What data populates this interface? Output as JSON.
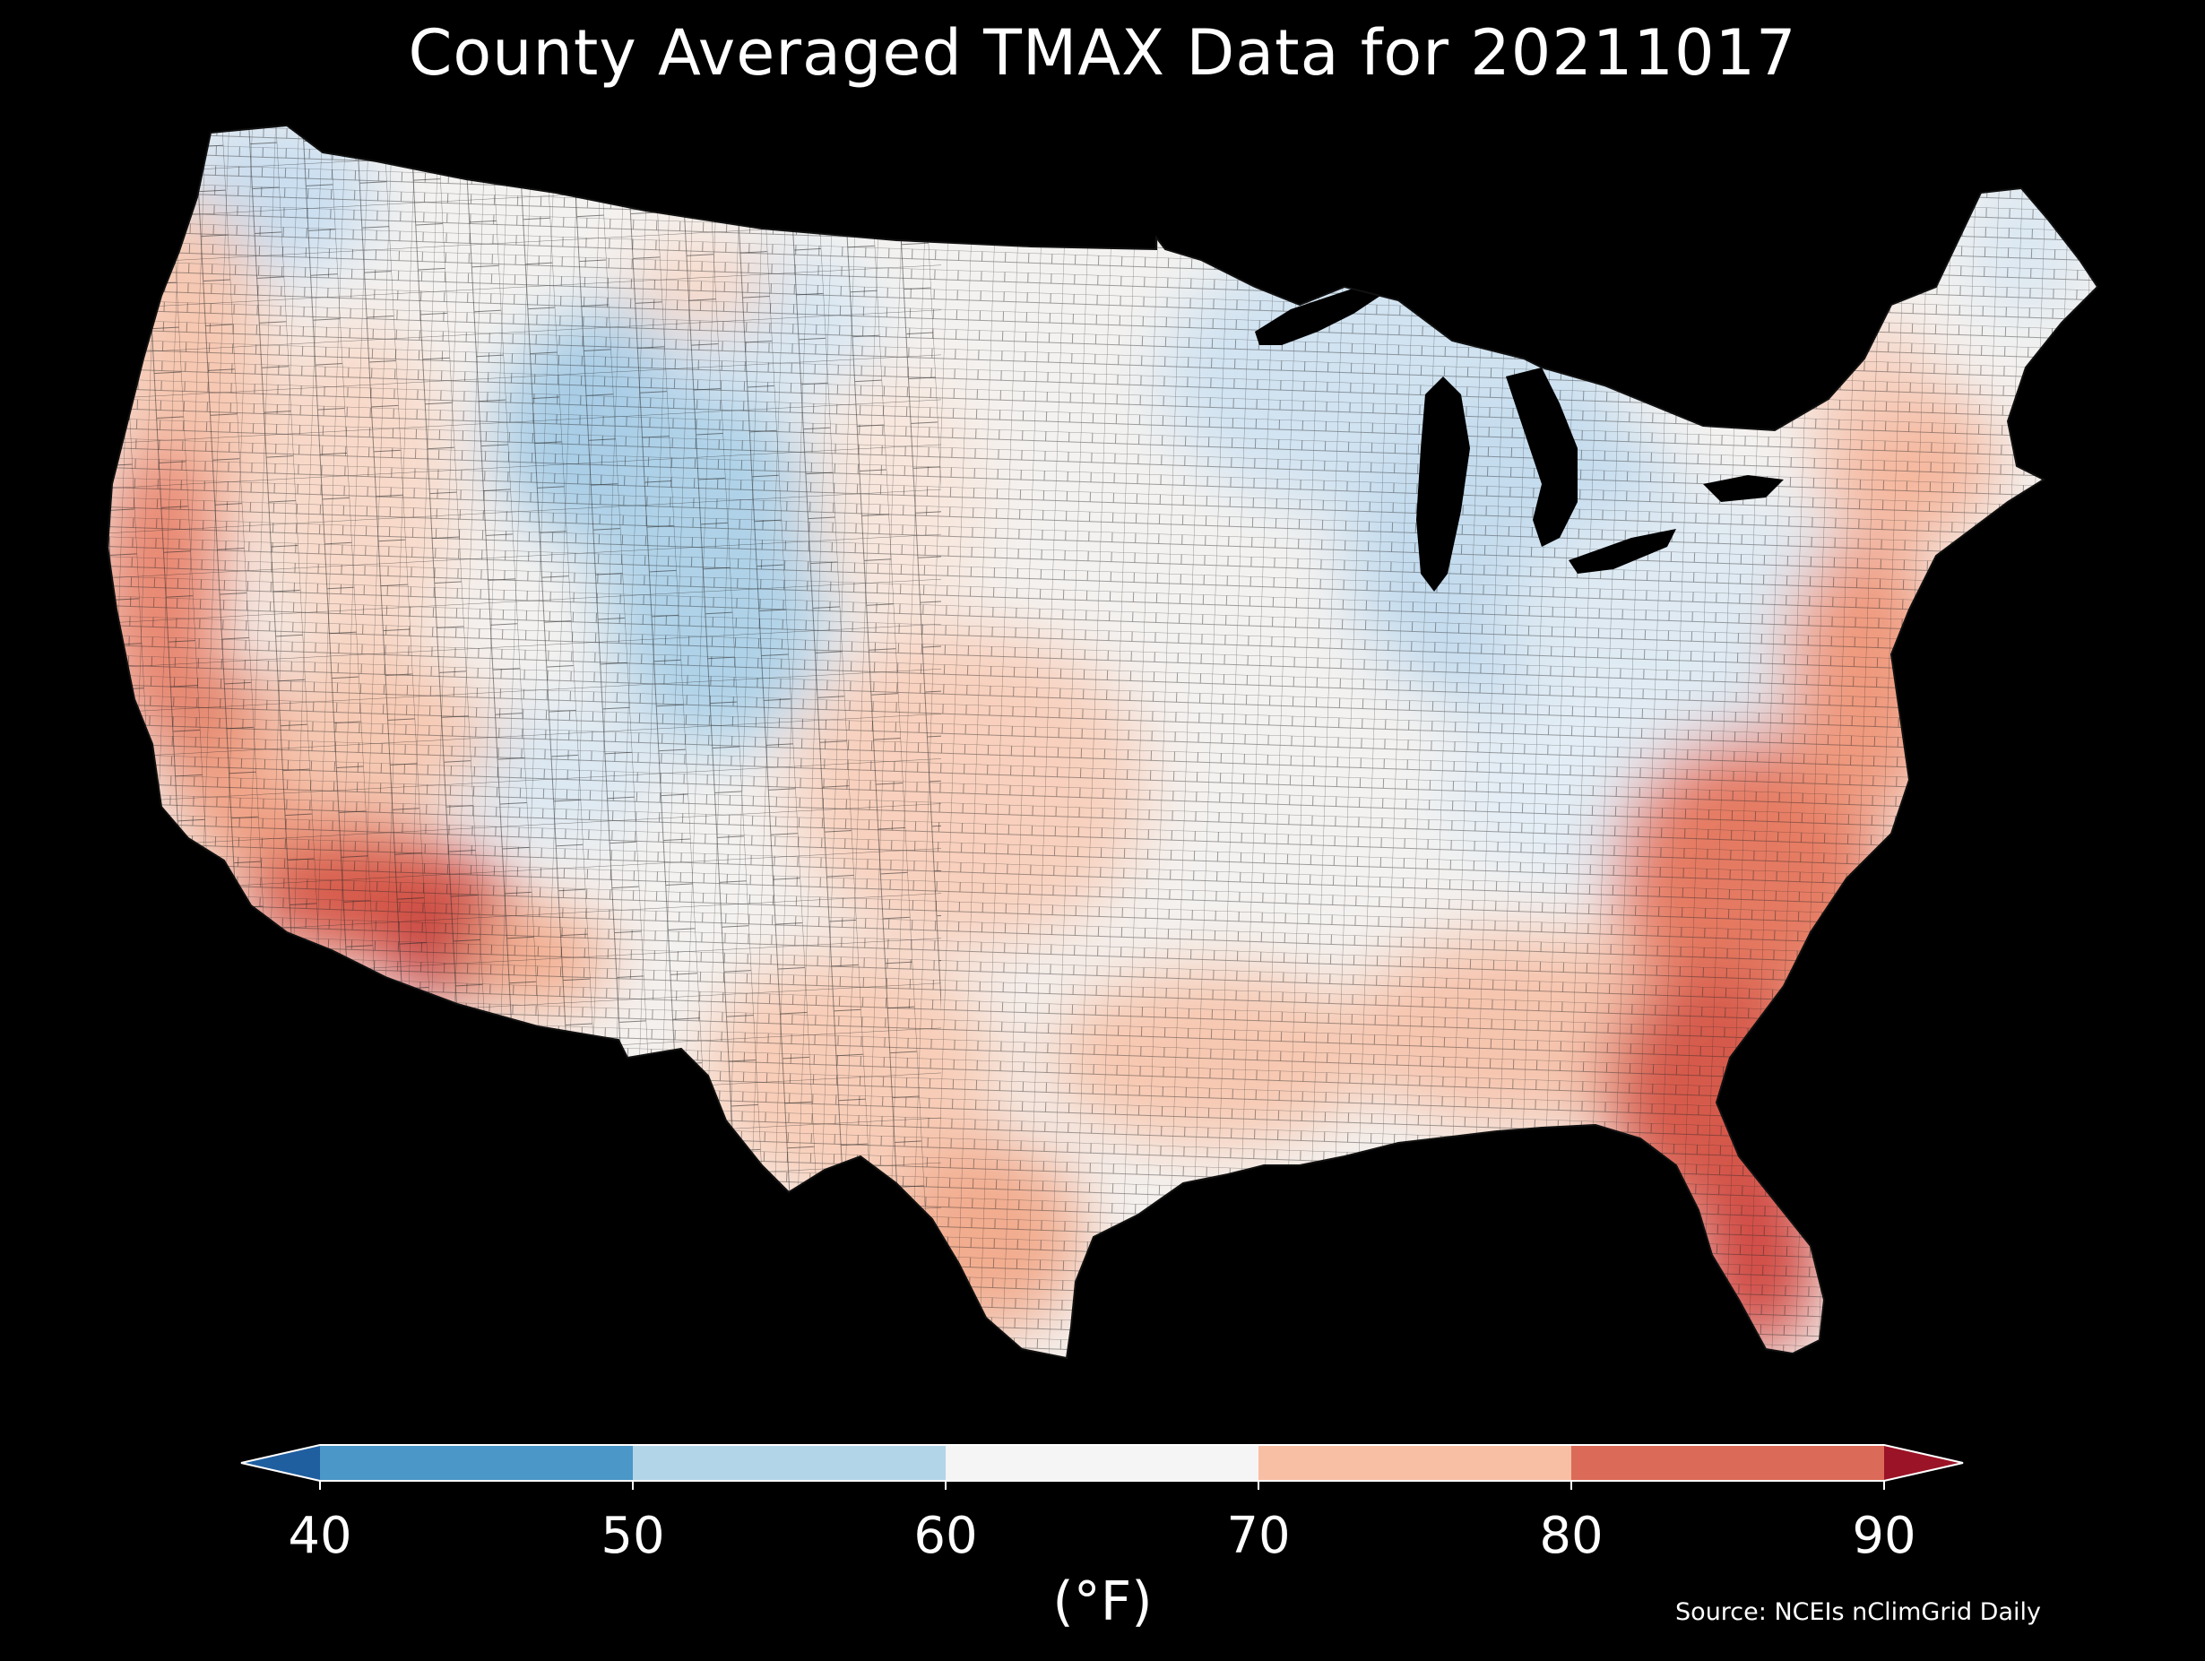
{
  "title": "County Averaged TMAX Data for 20211017",
  "colorbar": {
    "ticks": [
      "40",
      "50",
      "60",
      "70",
      "80",
      "90"
    ],
    "unit": "(°F)",
    "bins": [
      {
        "range": "<40",
        "color": "#1f5fa0"
      },
      {
        "range": "40-50",
        "color": "#4a97c8"
      },
      {
        "range": "50-60",
        "color": "#b3d5e8"
      },
      {
        "range": "60-70",
        "color": "#f5f5f5"
      },
      {
        "range": "70-80",
        "color": "#f8bfa4"
      },
      {
        "range": "80-90",
        "color": "#dc6a58"
      },
      {
        "range": ">90",
        "color": "#9b1326"
      }
    ]
  },
  "source": "Source: NCEIs nClimGrid Daily",
  "map_colors": {
    "background": "#000000",
    "county_border": "#333333",
    "water": "#000000"
  }
}
